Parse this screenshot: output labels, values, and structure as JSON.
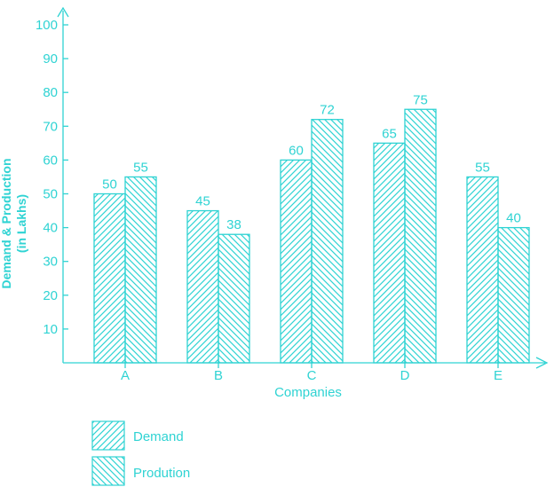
{
  "colors": {
    "accent": "#2fd3d3"
  },
  "chart_data": {
    "type": "bar",
    "categories": [
      "A",
      "B",
      "C",
      "D",
      "E"
    ],
    "series": [
      {
        "name": "Demand",
        "values": [
          50,
          45,
          60,
          65,
          55
        ],
        "pattern": "hatch-forward"
      },
      {
        "name": "Prodution",
        "values": [
          55,
          38,
          72,
          75,
          40
        ],
        "pattern": "hatch-backward"
      }
    ],
    "xlabel": "Companies",
    "ylabel_line1": "Demand & Production",
    "ylabel_line2": "(in Lakhs)",
    "ylim": [
      0,
      100
    ],
    "yticks": [
      10,
      20,
      30,
      40,
      50,
      60,
      70,
      80,
      90,
      100
    ],
    "legend_position": "bottom-left",
    "grid": false
  }
}
